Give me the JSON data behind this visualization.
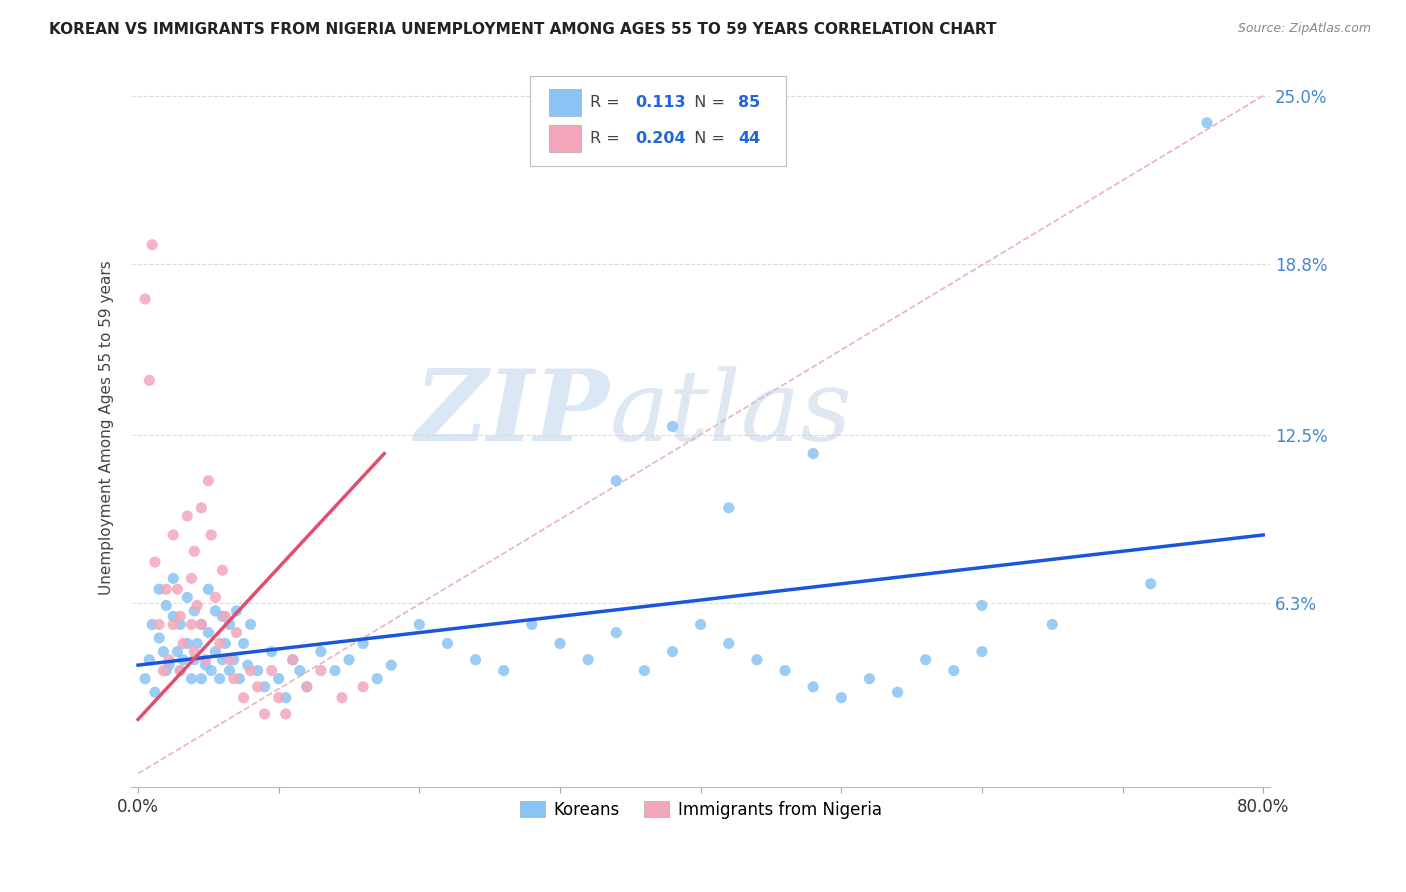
{
  "title": "KOREAN VS IMMIGRANTS FROM NIGERIA UNEMPLOYMENT AMONG AGES 55 TO 59 YEARS CORRELATION CHART",
  "source": "Source: ZipAtlas.com",
  "ylabel": "Unemployment Among Ages 55 to 59 years",
  "xlim": [
    0.0,
    0.8
  ],
  "ylim": [
    0.0,
    0.25
  ],
  "ytick_positions": [
    0.063,
    0.125,
    0.188,
    0.25
  ],
  "ytick_labels": [
    "6.3%",
    "12.5%",
    "18.8%",
    "25.0%"
  ],
  "xtick_positions": [
    0.0,
    0.1,
    0.2,
    0.3,
    0.4,
    0.5,
    0.6,
    0.7,
    0.8
  ],
  "xticklabels_show": [
    "0.0%",
    "",
    "",
    "",
    "",
    "",
    "",
    "",
    "80.0%"
  ],
  "korean_color": "#89c4f4",
  "nigeria_color": "#f4a7bb",
  "korean_R": "0.113",
  "korean_N": "85",
  "nigeria_R": "0.204",
  "nigeria_N": "44",
  "diagonal_color": "#e8b4bc",
  "korean_trend_color": "#1a56db",
  "nigeria_trend_color": "#e0506e",
  "watermark_zip": "ZIP",
  "watermark_atlas": "atlas",
  "korean_trend_x0": 0.0,
  "korean_trend_y0": 0.04,
  "korean_trend_x1": 0.8,
  "korean_trend_y1": 0.088,
  "nigeria_trend_x0": 0.0,
  "nigeria_trend_y0": 0.02,
  "nigeria_trend_x1": 0.175,
  "nigeria_trend_y1": 0.118,
  "korean_scatter_x": [
    0.005,
    0.008,
    0.01,
    0.012,
    0.015,
    0.015,
    0.018,
    0.02,
    0.02,
    0.022,
    0.025,
    0.025,
    0.028,
    0.03,
    0.03,
    0.032,
    0.035,
    0.035,
    0.038,
    0.04,
    0.04,
    0.042,
    0.045,
    0.045,
    0.048,
    0.05,
    0.05,
    0.052,
    0.055,
    0.055,
    0.058,
    0.06,
    0.06,
    0.062,
    0.065,
    0.065,
    0.068,
    0.07,
    0.072,
    0.075,
    0.078,
    0.08,
    0.085,
    0.09,
    0.095,
    0.1,
    0.105,
    0.11,
    0.115,
    0.12,
    0.13,
    0.14,
    0.15,
    0.16,
    0.17,
    0.18,
    0.2,
    0.22,
    0.24,
    0.26,
    0.28,
    0.3,
    0.32,
    0.34,
    0.36,
    0.38,
    0.4,
    0.42,
    0.44,
    0.46,
    0.48,
    0.5,
    0.52,
    0.54,
    0.56,
    0.58,
    0.6,
    0.34,
    0.42,
    0.6,
    0.65,
    0.72,
    0.48,
    0.38,
    0.76
  ],
  "korean_scatter_y": [
    0.035,
    0.042,
    0.055,
    0.03,
    0.05,
    0.068,
    0.045,
    0.038,
    0.062,
    0.04,
    0.058,
    0.072,
    0.045,
    0.038,
    0.055,
    0.042,
    0.048,
    0.065,
    0.035,
    0.042,
    0.06,
    0.048,
    0.035,
    0.055,
    0.04,
    0.052,
    0.068,
    0.038,
    0.045,
    0.06,
    0.035,
    0.042,
    0.058,
    0.048,
    0.038,
    0.055,
    0.042,
    0.06,
    0.035,
    0.048,
    0.04,
    0.055,
    0.038,
    0.032,
    0.045,
    0.035,
    0.028,
    0.042,
    0.038,
    0.032,
    0.045,
    0.038,
    0.042,
    0.048,
    0.035,
    0.04,
    0.055,
    0.048,
    0.042,
    0.038,
    0.055,
    0.048,
    0.042,
    0.052,
    0.038,
    0.045,
    0.055,
    0.048,
    0.042,
    0.038,
    0.032,
    0.028,
    0.035,
    0.03,
    0.042,
    0.038,
    0.045,
    0.108,
    0.098,
    0.062,
    0.055,
    0.07,
    0.118,
    0.128,
    0.24
  ],
  "nigeria_scatter_x": [
    0.005,
    0.008,
    0.01,
    0.012,
    0.015,
    0.018,
    0.02,
    0.022,
    0.025,
    0.025,
    0.028,
    0.03,
    0.03,
    0.032,
    0.035,
    0.038,
    0.038,
    0.04,
    0.04,
    0.042,
    0.045,
    0.045,
    0.048,
    0.05,
    0.052,
    0.055,
    0.058,
    0.06,
    0.062,
    0.065,
    0.068,
    0.07,
    0.075,
    0.08,
    0.085,
    0.09,
    0.095,
    0.1,
    0.105,
    0.11,
    0.12,
    0.13,
    0.145,
    0.16
  ],
  "nigeria_scatter_y": [
    0.175,
    0.145,
    0.195,
    0.078,
    0.055,
    0.038,
    0.068,
    0.042,
    0.088,
    0.055,
    0.068,
    0.058,
    0.038,
    0.048,
    0.095,
    0.072,
    0.055,
    0.082,
    0.045,
    0.062,
    0.098,
    0.055,
    0.042,
    0.108,
    0.088,
    0.065,
    0.048,
    0.075,
    0.058,
    0.042,
    0.035,
    0.052,
    0.028,
    0.038,
    0.032,
    0.022,
    0.038,
    0.028,
    0.022,
    0.042,
    0.032,
    0.038,
    0.028,
    0.032
  ]
}
